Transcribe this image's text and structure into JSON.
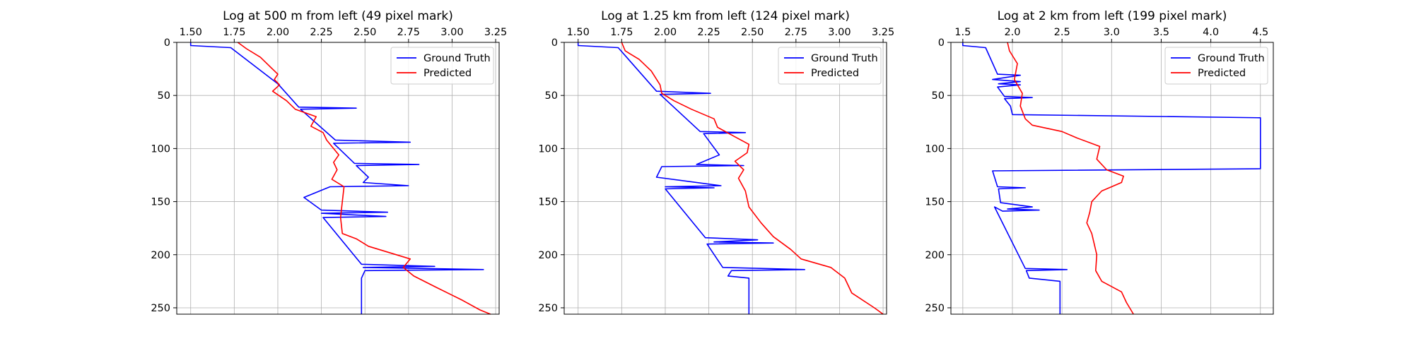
{
  "chart_data": [
    {
      "type": "line",
      "title": "Log at 500 m from left (49 pixel mark)",
      "xlabel": "",
      "ylabel": "",
      "xlim": [
        1.42,
        3.27
      ],
      "ylim": [
        256,
        0
      ],
      "x_ticks": [
        1.5,
        1.75,
        2.0,
        2.25,
        2.5,
        2.75,
        3.0,
        3.25
      ],
      "x_tick_labels": [
        "1.50",
        "1.75",
        "2.00",
        "2.25",
        "2.50",
        "2.75",
        "3.00",
        "3.25"
      ],
      "y_ticks": [
        0,
        50,
        100,
        150,
        200,
        250
      ],
      "y_tick_labels": [
        "0",
        "50",
        "100",
        "150",
        "200",
        "250"
      ],
      "x_axis_position": "top",
      "y_axis_inverted": true,
      "grid": true,
      "legend": {
        "position": "top-right"
      },
      "series": [
        {
          "name": "Ground Truth",
          "color": "#0000ff",
          "points": [
            [
              1.5,
              0
            ],
            [
              1.5,
              3
            ],
            [
              1.73,
              5
            ],
            [
              2.0,
              39
            ],
            [
              2.12,
              61
            ],
            [
              2.45,
              62
            ],
            [
              2.13,
              63
            ],
            [
              2.33,
              92
            ],
            [
              2.76,
              94
            ],
            [
              2.32,
              95
            ],
            [
              2.44,
              114
            ],
            [
              2.81,
              115
            ],
            [
              2.45,
              116
            ],
            [
              2.52,
              127
            ],
            [
              2.49,
              132
            ],
            [
              2.75,
              135
            ],
            [
              2.3,
              136
            ],
            [
              2.15,
              146
            ],
            [
              2.25,
              158
            ],
            [
              2.63,
              160
            ],
            [
              2.25,
              161
            ],
            [
              2.62,
              164
            ],
            [
              2.26,
              165
            ],
            [
              2.48,
              209
            ],
            [
              2.9,
              211
            ],
            [
              2.49,
              212
            ],
            [
              3.18,
              214
            ],
            [
              2.5,
              215
            ],
            [
              2.48,
              222
            ],
            [
              2.48,
              256
            ]
          ]
        },
        {
          "name": "Predicted",
          "color": "#ff0000",
          "points": [
            [
              1.77,
              0
            ],
            [
              1.82,
              6
            ],
            [
              1.9,
              14
            ],
            [
              1.95,
              22
            ],
            [
              2.0,
              30
            ],
            [
              1.98,
              35
            ],
            [
              2.01,
              40
            ],
            [
              1.97,
              46
            ],
            [
              2.05,
              55
            ],
            [
              2.1,
              63
            ],
            [
              2.22,
              70
            ],
            [
              2.19,
              79
            ],
            [
              2.26,
              85
            ],
            [
              2.28,
              92
            ],
            [
              2.32,
              100
            ],
            [
              2.35,
              106
            ],
            [
              2.32,
              113
            ],
            [
              2.34,
              120
            ],
            [
              2.31,
              129
            ],
            [
              2.38,
              136
            ],
            [
              2.37,
              150
            ],
            [
              2.36,
              165
            ],
            [
              2.37,
              180
            ],
            [
              2.45,
              185
            ],
            [
              2.52,
              192
            ],
            [
              2.64,
              198
            ],
            [
              2.76,
              204
            ],
            [
              2.72,
              212
            ],
            [
              2.78,
              220
            ],
            [
              2.9,
              230
            ],
            [
              3.06,
              243
            ],
            [
              3.16,
              252
            ],
            [
              3.22,
              256
            ]
          ]
        }
      ]
    },
    {
      "type": "line",
      "title": "Log at 1.25 km from left (124 pixel mark)",
      "xlabel": "",
      "ylabel": "",
      "xlim": [
        1.42,
        3.27
      ],
      "ylim": [
        256,
        0
      ],
      "x_ticks": [
        1.5,
        1.75,
        2.0,
        2.25,
        2.5,
        2.75,
        3.0,
        3.25
      ],
      "x_tick_labels": [
        "1.50",
        "1.75",
        "2.00",
        "2.25",
        "2.50",
        "2.75",
        "3.00",
        "3.25"
      ],
      "y_ticks": [
        0,
        50,
        100,
        150,
        200,
        250
      ],
      "y_tick_labels": [
        "0",
        "50",
        "100",
        "150",
        "200",
        "250"
      ],
      "x_axis_position": "top",
      "y_axis_inverted": true,
      "grid": true,
      "legend": {
        "position": "top-right"
      },
      "series": [
        {
          "name": "Ground Truth",
          "color": "#0000ff",
          "points": [
            [
              1.5,
              0
            ],
            [
              1.5,
              3
            ],
            [
              1.73,
              5
            ],
            [
              1.95,
              46
            ],
            [
              2.26,
              48
            ],
            [
              1.97,
              49
            ],
            [
              2.2,
              84
            ],
            [
              2.46,
              85
            ],
            [
              2.22,
              86
            ],
            [
              2.31,
              106
            ],
            [
              2.18,
              115
            ],
            [
              2.45,
              116
            ],
            [
              1.98,
              117
            ],
            [
              1.95,
              127
            ],
            [
              2.32,
              135
            ],
            [
              2.0,
              136
            ],
            [
              2.28,
              137
            ],
            [
              2.0,
              138
            ],
            [
              2.23,
              184
            ],
            [
              2.53,
              186
            ],
            [
              2.28,
              188
            ],
            [
              2.62,
              189
            ],
            [
              2.24,
              190
            ],
            [
              2.33,
              212
            ],
            [
              2.8,
              214
            ],
            [
              2.38,
              215
            ],
            [
              2.36,
              220
            ],
            [
              2.48,
              222
            ],
            [
              2.48,
              256
            ]
          ]
        },
        {
          "name": "Predicted",
          "color": "#ff0000",
          "points": [
            [
              1.75,
              0
            ],
            [
              1.77,
              8
            ],
            [
              1.85,
              16
            ],
            [
              1.92,
              27
            ],
            [
              1.97,
              40
            ],
            [
              1.98,
              48
            ],
            [
              2.05,
              55
            ],
            [
              2.15,
              63
            ],
            [
              2.28,
              72
            ],
            [
              2.3,
              80
            ],
            [
              2.4,
              89
            ],
            [
              2.48,
              96
            ],
            [
              2.47,
              104
            ],
            [
              2.4,
              112
            ],
            [
              2.45,
              120
            ],
            [
              2.42,
              128
            ],
            [
              2.46,
              140
            ],
            [
              2.48,
              155
            ],
            [
              2.55,
              170
            ],
            [
              2.62,
              183
            ],
            [
              2.72,
              195
            ],
            [
              2.78,
              204
            ],
            [
              2.95,
              212
            ],
            [
              3.03,
              222
            ],
            [
              3.07,
              236
            ],
            [
              3.2,
              250
            ],
            [
              3.25,
              256
            ]
          ]
        }
      ]
    },
    {
      "type": "line",
      "title": "Log at 2 km from left (199 pixel mark)",
      "xlabel": "",
      "ylabel": "",
      "xlim": [
        1.38,
        4.63
      ],
      "ylim": [
        256,
        0
      ],
      "x_ticks": [
        1.5,
        2.0,
        2.5,
        3.0,
        3.5,
        4.0,
        4.5
      ],
      "x_tick_labels": [
        "1.5",
        "2.0",
        "2.5",
        "3.0",
        "3.5",
        "4.0",
        "4.5"
      ],
      "y_ticks": [
        0,
        50,
        100,
        150,
        200,
        250
      ],
      "y_tick_labels": [
        "0",
        "50",
        "100",
        "150",
        "200",
        "250"
      ],
      "x_axis_position": "top",
      "y_axis_inverted": true,
      "grid": true,
      "legend": {
        "position": "top-right"
      },
      "series": [
        {
          "name": "Ground Truth",
          "color": "#0000ff",
          "points": [
            [
              1.5,
              0
            ],
            [
              1.5,
              3
            ],
            [
              1.73,
              5
            ],
            [
              1.85,
              30
            ],
            [
              2.08,
              31
            ],
            [
              1.8,
              35
            ],
            [
              2.08,
              37
            ],
            [
              1.86,
              39
            ],
            [
              2.08,
              40
            ],
            [
              1.85,
              42
            ],
            [
              1.92,
              51
            ],
            [
              2.2,
              52
            ],
            [
              1.92,
              53
            ],
            [
              1.98,
              60
            ],
            [
              2.0,
              68
            ],
            [
              4.5,
              71
            ],
            [
              4.5,
              119
            ],
            [
              1.8,
              121
            ],
            [
              1.85,
              136
            ],
            [
              2.13,
              137
            ],
            [
              1.86,
              138
            ],
            [
              1.88,
              151
            ],
            [
              2.2,
              155
            ],
            [
              1.95,
              157
            ],
            [
              2.27,
              158
            ],
            [
              1.9,
              159
            ],
            [
              1.82,
              155
            ],
            [
              2.13,
              213
            ],
            [
              2.55,
              214
            ],
            [
              2.14,
              215
            ],
            [
              2.17,
              222
            ],
            [
              2.48,
              225
            ],
            [
              2.48,
              256
            ]
          ]
        },
        {
          "name": "Predicted",
          "color": "#ff0000",
          "points": [
            [
              1.95,
              0
            ],
            [
              1.97,
              8
            ],
            [
              2.05,
              20
            ],
            [
              2.02,
              35
            ],
            [
              2.1,
              48
            ],
            [
              2.08,
              60
            ],
            [
              2.13,
              72
            ],
            [
              2.2,
              78
            ],
            [
              2.5,
              84
            ],
            [
              2.65,
              90
            ],
            [
              2.88,
              98
            ],
            [
              2.85,
              110
            ],
            [
              2.95,
              120
            ],
            [
              3.12,
              126
            ],
            [
              3.1,
              132
            ],
            [
              2.9,
              140
            ],
            [
              2.8,
              150
            ],
            [
              2.78,
              160
            ],
            [
              2.75,
              170
            ],
            [
              2.8,
              180
            ],
            [
              2.85,
              200
            ],
            [
              2.84,
              215
            ],
            [
              2.9,
              225
            ],
            [
              3.1,
              235
            ],
            [
              3.15,
              245
            ],
            [
              3.22,
              256
            ]
          ]
        }
      ]
    }
  ]
}
